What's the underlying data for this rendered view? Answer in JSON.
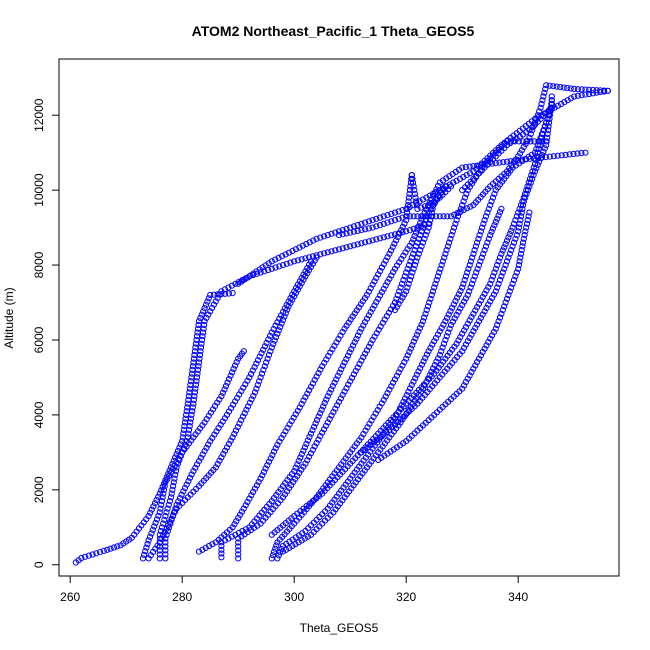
{
  "chart_data": {
    "type": "scatter",
    "title": "ATOM2 Northeast_Pacific_1 Theta_GEOS5",
    "xlabel": "Theta_GEOS5",
    "ylabel": "Altitude (m)",
    "xlim": [
      258,
      358
    ],
    "ylim": [
      -300,
      13500
    ],
    "x_ticks": [
      260,
      280,
      300,
      320,
      340
    ],
    "y_ticks": [
      0,
      2000,
      4000,
      6000,
      8000,
      10000,
      12000
    ],
    "marker": "open-circle",
    "color": "#0000ff",
    "grid": false,
    "legend": "none",
    "profiles": [
      [
        [
          261,
          60
        ],
        [
          262,
          180
        ],
        [
          266,
          370
        ],
        [
          269,
          520
        ],
        [
          271,
          720
        ],
        [
          274,
          1300
        ],
        [
          276,
          1900
        ],
        [
          278,
          2600
        ],
        [
          280,
          3300
        ],
        [
          281,
          4300
        ],
        [
          282,
          5400
        ],
        [
          283,
          6500
        ],
        [
          285,
          7200
        ],
        [
          289,
          7250
        ]
      ],
      [
        [
          273,
          170
        ],
        [
          274,
          650
        ],
        [
          276,
          1400
        ],
        [
          277,
          2200
        ],
        [
          280,
          3000
        ],
        [
          284,
          3800
        ],
        [
          287,
          4500
        ],
        [
          290,
          5500
        ],
        [
          291,
          5700
        ]
      ],
      [
        [
          277,
          170
        ],
        [
          277,
          700
        ],
        [
          279,
          1600
        ],
        [
          282,
          2500
        ],
        [
          285,
          3300
        ],
        [
          288,
          4000
        ],
        [
          292,
          5000
        ],
        [
          296,
          6200
        ],
        [
          300,
          7300
        ],
        [
          303,
          8100
        ]
      ],
      [
        [
          274,
          170
        ],
        [
          276,
          600
        ],
        [
          279,
          1500
        ],
        [
          283,
          2100
        ],
        [
          286,
          2600
        ],
        [
          289,
          3400
        ],
        [
          293,
          4600
        ],
        [
          296,
          5800
        ],
        [
          299,
          6900
        ],
        [
          302,
          7700
        ],
        [
          304,
          8200
        ]
      ],
      [
        [
          276,
          170
        ],
        [
          276,
          800
        ],
        [
          278,
          1800
        ],
        [
          279,
          2600
        ],
        [
          281,
          3400
        ],
        [
          282,
          4300
        ],
        [
          283,
          5400
        ],
        [
          284,
          6500
        ],
        [
          287,
          7300
        ],
        [
          292,
          7700
        ],
        [
          300,
          8100
        ],
        [
          310,
          8500
        ],
        [
          320,
          8900
        ],
        [
          324,
          9100
        ]
      ],
      [
        [
          283,
          350
        ],
        [
          286,
          600
        ],
        [
          289,
          1000
        ],
        [
          291,
          1500
        ],
        [
          294,
          2300
        ],
        [
          297,
          3200
        ],
        [
          301,
          4200
        ],
        [
          305,
          5300
        ],
        [
          309,
          6300
        ],
        [
          313,
          7200
        ],
        [
          317,
          8300
        ],
        [
          320,
          9200
        ],
        [
          321,
          10400
        ]
      ],
      [
        [
          287,
          200
        ],
        [
          287,
          600
        ],
        [
          292,
          1000
        ],
        [
          296,
          1700
        ],
        [
          300,
          2500
        ],
        [
          303,
          3500
        ],
        [
          306,
          4500
        ],
        [
          309,
          5400
        ],
        [
          312,
          6300
        ],
        [
          315,
          7100
        ],
        [
          318,
          7900
        ],
        [
          321,
          8600
        ],
        [
          323,
          9300
        ],
        [
          326,
          10200
        ],
        [
          330,
          10600
        ],
        [
          340,
          10800
        ],
        [
          352,
          11000
        ]
      ],
      [
        [
          290,
          170
        ],
        [
          290,
          700
        ],
        [
          294,
          1100
        ],
        [
          298,
          1800
        ],
        [
          302,
          2700
        ],
        [
          306,
          3800
        ],
        [
          310,
          4900
        ],
        [
          314,
          6000
        ],
        [
          318,
          7000
        ],
        [
          320,
          7800
        ],
        [
          322,
          8600
        ],
        [
          324,
          9400
        ],
        [
          327,
          10100
        ]
      ],
      [
        [
          296,
          170
        ],
        [
          297,
          600
        ],
        [
          300,
          1100
        ],
        [
          304,
          1800
        ],
        [
          308,
          2600
        ],
        [
          312,
          3400
        ],
        [
          316,
          4400
        ],
        [
          320,
          5500
        ],
        [
          323,
          6500
        ],
        [
          325,
          7400
        ],
        [
          327,
          8300
        ],
        [
          329,
          9200
        ],
        [
          331,
          10000
        ],
        [
          334,
          10700
        ],
        [
          338,
          11300
        ],
        [
          345,
          11300
        ]
      ],
      [
        [
          297,
          170
        ],
        [
          298,
          500
        ],
        [
          302,
          900
        ],
        [
          306,
          1500
        ],
        [
          310,
          2300
        ],
        [
          314,
          3100
        ],
        [
          318,
          3900
        ],
        [
          321,
          4800
        ],
        [
          324,
          5700
        ],
        [
          327,
          6500
        ],
        [
          330,
          7400
        ],
        [
          332,
          8300
        ],
        [
          334,
          9200
        ],
        [
          336,
          10000
        ],
        [
          339,
          10600
        ],
        [
          343,
          11000
        ],
        [
          346,
          12200
        ]
      ],
      [
        [
          298,
          350
        ],
        [
          303,
          800
        ],
        [
          307,
          1400
        ],
        [
          311,
          2200
        ],
        [
          315,
          3000
        ],
        [
          319,
          3800
        ],
        [
          323,
          4700
        ],
        [
          326,
          5600
        ],
        [
          328,
          6400
        ],
        [
          331,
          7200
        ],
        [
          333,
          8000
        ],
        [
          335,
          8800
        ],
        [
          337,
          9500
        ]
      ],
      [
        [
          296,
          800
        ],
        [
          300,
          1300
        ],
        [
          305,
          1900
        ],
        [
          310,
          2700
        ],
        [
          315,
          3500
        ],
        [
          320,
          4300
        ],
        [
          325,
          5100
        ],
        [
          329,
          5900
        ],
        [
          332,
          6700
        ],
        [
          335,
          7500
        ],
        [
          337,
          8300
        ],
        [
          339,
          9000
        ],
        [
          341,
          9800
        ],
        [
          343,
          10700
        ],
        [
          344,
          11300
        ],
        [
          346,
          12300
        ]
      ],
      [
        [
          312,
          3000
        ],
        [
          317,
          3600
        ],
        [
          322,
          4300
        ],
        [
          326,
          5000
        ],
        [
          330,
          5700
        ],
        [
          333,
          6500
        ],
        [
          336,
          7300
        ],
        [
          338,
          8100
        ],
        [
          340,
          8900
        ],
        [
          341,
          9700
        ],
        [
          343,
          10500
        ],
        [
          345,
          11200
        ],
        [
          346,
          12400
        ]
      ],
      [
        [
          315,
          2800
        ],
        [
          320,
          3300
        ],
        [
          325,
          4000
        ],
        [
          330,
          4700
        ],
        [
          333,
          5500
        ],
        [
          336,
          6300
        ],
        [
          338,
          7100
        ],
        [
          340,
          7900
        ],
        [
          341,
          8700
        ],
        [
          342,
          9400
        ]
      ],
      [
        [
          318,
          6800
        ],
        [
          320,
          7300
        ],
        [
          322,
          8200
        ],
        [
          324,
          9000
        ],
        [
          325,
          9700
        ],
        [
          327,
          10100
        ]
      ],
      [
        [
          308,
          8800
        ],
        [
          314,
          9000
        ],
        [
          320,
          9300
        ],
        [
          328,
          9300
        ],
        [
          332,
          9600
        ],
        [
          335,
          10100
        ],
        [
          338,
          10500
        ],
        [
          340,
          10900
        ],
        [
          342,
          11400
        ],
        [
          344,
          12200
        ],
        [
          345,
          12800
        ],
        [
          350,
          12700
        ],
        [
          356,
          12650
        ]
      ],
      [
        [
          290,
          7500
        ],
        [
          296,
          8100
        ],
        [
          304,
          8700
        ],
        [
          312,
          9100
        ],
        [
          320,
          9500
        ],
        [
          326,
          10000
        ],
        [
          332,
          10500
        ],
        [
          337,
          11200
        ],
        [
          343,
          11900
        ],
        [
          350,
          12500
        ],
        [
          356,
          12650
        ]
      ],
      [
        [
          321,
          10400
        ],
        [
          322,
          9500
        ],
        [
          324,
          9600
        ],
        [
          326,
          9800
        ],
        [
          328,
          10100
        ]
      ],
      [
        [
          330,
          10000
        ],
        [
          334,
          10600
        ],
        [
          338,
          11200
        ],
        [
          342,
          11600
        ],
        [
          346,
          12200
        ],
        [
          346,
          12500
        ]
      ]
    ]
  }
}
